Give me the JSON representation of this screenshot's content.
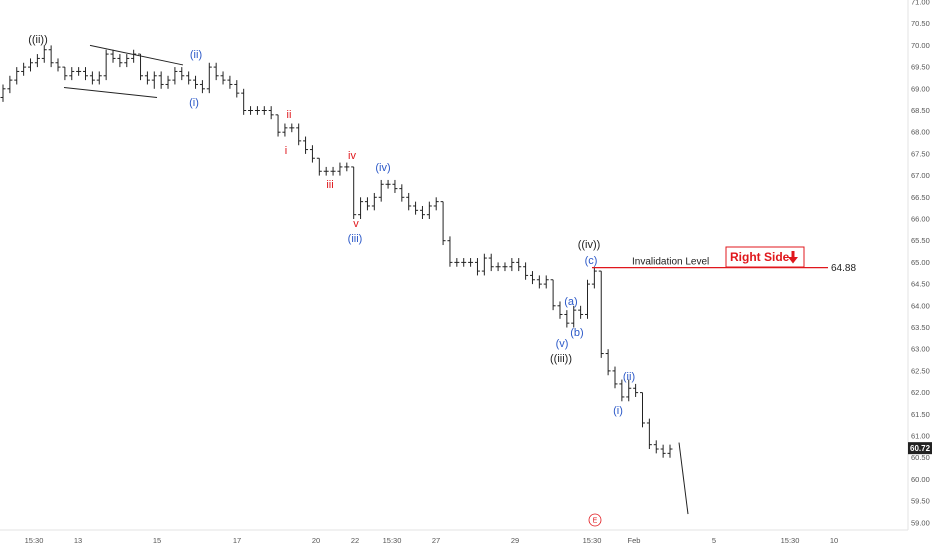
{
  "chart_data": {
    "type": "ohlc",
    "y_axis": {
      "range": [
        58.8,
        71.1
      ],
      "ticks": [
        59.0,
        59.5,
        60.0,
        60.5,
        61.0,
        61.5,
        62.0,
        62.5,
        63.0,
        63.5,
        64.0,
        64.5,
        65.0,
        65.5,
        66.0,
        66.5,
        67.0,
        67.5,
        68.0,
        68.5,
        69.0,
        69.5,
        70.0,
        70.5,
        71.0
      ],
      "tick_labels": [
        "59.00",
        "59.50",
        "60.00",
        "60.50",
        "61.00",
        "61.50",
        "62.00",
        "62.50",
        "63.00",
        "63.50",
        "64.00",
        "64.50",
        "65.00",
        "65.50",
        "66.00",
        "66.50",
        "67.00",
        "67.50",
        "68.00",
        "68.50",
        "69.00",
        "69.50",
        "70.00",
        "70.50",
        "71.00"
      ]
    },
    "x_axis": {
      "tick_labels": [
        "15:30",
        "13",
        "15",
        "17",
        "20",
        "22",
        "15:30",
        "27",
        "29",
        "15:30",
        "Feb",
        "5",
        "15:30",
        "10"
      ]
    },
    "last_price": "60.72",
    "bars": [
      [
        68.8,
        69.1,
        68.7,
        69.0
      ],
      [
        69.0,
        69.3,
        68.9,
        69.2
      ],
      [
        69.2,
        69.5,
        69.1,
        69.4
      ],
      [
        69.4,
        69.6,
        69.3,
        69.5
      ],
      [
        69.5,
        69.7,
        69.4,
        69.6
      ],
      [
        69.6,
        69.8,
        69.5,
        69.7
      ],
      [
        69.7,
        70.0,
        69.6,
        69.9
      ],
      [
        69.9,
        70.0,
        69.5,
        69.6
      ],
      [
        69.6,
        69.7,
        69.4,
        69.5
      ],
      [
        69.5,
        69.5,
        69.2,
        69.3
      ],
      [
        69.3,
        69.5,
        69.2,
        69.4
      ],
      [
        69.4,
        69.5,
        69.3,
        69.4
      ],
      [
        69.4,
        69.5,
        69.2,
        69.3
      ],
      [
        69.3,
        69.4,
        69.1,
        69.2
      ],
      [
        69.2,
        69.4,
        69.1,
        69.3
      ],
      [
        69.3,
        69.9,
        69.2,
        69.8
      ],
      [
        69.8,
        69.9,
        69.6,
        69.7
      ],
      [
        69.7,
        69.8,
        69.5,
        69.6
      ],
      [
        69.6,
        69.8,
        69.5,
        69.7
      ],
      [
        69.7,
        69.9,
        69.6,
        69.8
      ],
      [
        69.8,
        69.8,
        69.2,
        69.3
      ],
      [
        69.3,
        69.4,
        69.1,
        69.2
      ],
      [
        69.2,
        69.4,
        69.0,
        69.3
      ],
      [
        69.3,
        69.4,
        69.0,
        69.1
      ],
      [
        69.1,
        69.3,
        69.0,
        69.2
      ],
      [
        69.2,
        69.5,
        69.1,
        69.4
      ],
      [
        69.4,
        69.5,
        69.2,
        69.3
      ],
      [
        69.3,
        69.4,
        69.1,
        69.2
      ],
      [
        69.2,
        69.3,
        69.0,
        69.1
      ],
      [
        69.1,
        69.2,
        68.9,
        69.0
      ],
      [
        69.0,
        69.6,
        68.9,
        69.5
      ],
      [
        69.5,
        69.6,
        69.2,
        69.3
      ],
      [
        69.3,
        69.4,
        69.1,
        69.2
      ],
      [
        69.2,
        69.3,
        69.0,
        69.1
      ],
      [
        69.1,
        69.2,
        68.8,
        68.9
      ],
      [
        68.9,
        69.0,
        68.4,
        68.5
      ],
      [
        68.5,
        68.6,
        68.4,
        68.5
      ],
      [
        68.5,
        68.6,
        68.4,
        68.5
      ],
      [
        68.5,
        68.6,
        68.4,
        68.5
      ],
      [
        68.5,
        68.6,
        68.3,
        68.4
      ],
      [
        68.4,
        68.4,
        67.9,
        68.0
      ],
      [
        68.0,
        68.2,
        67.9,
        68.1
      ],
      [
        68.1,
        68.2,
        68.0,
        68.1
      ],
      [
        68.1,
        68.2,
        67.7,
        67.8
      ],
      [
        67.8,
        67.9,
        67.5,
        67.6
      ],
      [
        67.6,
        67.7,
        67.3,
        67.4
      ],
      [
        67.4,
        67.4,
        67.0,
        67.1
      ],
      [
        67.1,
        67.2,
        67.0,
        67.1
      ],
      [
        67.1,
        67.2,
        67.0,
        67.1
      ],
      [
        67.1,
        67.3,
        67.0,
        67.2
      ],
      [
        67.2,
        67.3,
        67.1,
        67.2
      ],
      [
        67.2,
        67.2,
        66.0,
        66.1
      ],
      [
        66.1,
        66.5,
        66.0,
        66.4
      ],
      [
        66.4,
        66.5,
        66.2,
        66.3
      ],
      [
        66.3,
        66.6,
        66.2,
        66.5
      ],
      [
        66.5,
        66.9,
        66.4,
        66.8
      ],
      [
        66.8,
        66.9,
        66.7,
        66.8
      ],
      [
        66.8,
        66.9,
        66.6,
        66.7
      ],
      [
        66.7,
        66.8,
        66.4,
        66.5
      ],
      [
        66.5,
        66.6,
        66.2,
        66.3
      ],
      [
        66.3,
        66.4,
        66.1,
        66.2
      ],
      [
        66.2,
        66.3,
        66.0,
        66.1
      ],
      [
        66.1,
        66.4,
        66.0,
        66.3
      ],
      [
        66.3,
        66.5,
        66.2,
        66.4
      ],
      [
        66.4,
        66.4,
        65.4,
        65.5
      ],
      [
        65.5,
        65.6,
        64.9,
        65.0
      ],
      [
        65.0,
        65.1,
        64.9,
        65.0
      ],
      [
        65.0,
        65.1,
        64.9,
        65.0
      ],
      [
        65.0,
        65.1,
        64.9,
        65.0
      ],
      [
        65.0,
        65.1,
        64.7,
        64.8
      ],
      [
        64.8,
        65.2,
        64.7,
        65.1
      ],
      [
        65.1,
        65.2,
        64.8,
        64.9
      ],
      [
        64.9,
        65.0,
        64.8,
        64.9
      ],
      [
        64.9,
        65.0,
        64.8,
        64.9
      ],
      [
        64.9,
        65.1,
        64.8,
        65.0
      ],
      [
        65.0,
        65.1,
        64.8,
        64.9
      ],
      [
        64.9,
        65.0,
        64.6,
        64.7
      ],
      [
        64.7,
        64.8,
        64.5,
        64.6
      ],
      [
        64.6,
        64.7,
        64.4,
        64.5
      ],
      [
        64.5,
        64.7,
        64.4,
        64.6
      ],
      [
        64.6,
        64.6,
        63.9,
        64.0
      ],
      [
        64.0,
        64.1,
        63.7,
        63.8
      ],
      [
        63.8,
        63.9,
        63.5,
        63.6
      ],
      [
        63.6,
        64.0,
        63.5,
        63.9
      ],
      [
        63.9,
        64.0,
        63.7,
        63.8
      ],
      [
        63.8,
        64.6,
        63.7,
        64.5
      ],
      [
        64.5,
        64.9,
        64.4,
        64.8
      ],
      [
        64.8,
        64.8,
        62.8,
        62.9
      ],
      [
        62.9,
        63.0,
        62.4,
        62.5
      ],
      [
        62.5,
        62.6,
        62.1,
        62.2
      ],
      [
        62.2,
        62.3,
        61.8,
        61.9
      ],
      [
        61.9,
        62.3,
        61.8,
        62.1
      ],
      [
        62.1,
        62.2,
        61.9,
        62.0
      ],
      [
        62.0,
        62.0,
        61.2,
        61.3
      ],
      [
        61.3,
        61.4,
        60.7,
        60.8
      ],
      [
        60.8,
        60.9,
        60.6,
        60.7
      ],
      [
        60.7,
        60.8,
        60.5,
        60.6
      ],
      [
        60.6,
        60.8,
        60.5,
        60.7
      ]
    ],
    "projection": [
      [
        60.85,
        59.2
      ]
    ],
    "wave_labels": [
      {
        "text": "((ii))",
        "color": "#222222"
      },
      {
        "text": "(ii)",
        "color": "#2c59c8"
      },
      {
        "text": "(i)",
        "color": "#2c59c8"
      },
      {
        "text": "ii",
        "color": "#e0171c"
      },
      {
        "text": "i",
        "color": "#e0171c"
      },
      {
        "text": "iii",
        "color": "#e0171c"
      },
      {
        "text": "iv",
        "color": "#e0171c"
      },
      {
        "text": "v",
        "color": "#e0171c"
      },
      {
        "text": "(iii)",
        "color": "#2c59c8"
      },
      {
        "text": "(iv)",
        "color": "#2c59c8"
      },
      {
        "text": "((iv))",
        "color": "#222222"
      },
      {
        "text": "(c)",
        "color": "#2c59c8"
      },
      {
        "text": "(a)",
        "color": "#2c59c8"
      },
      {
        "text": "(b)",
        "color": "#2c59c8"
      },
      {
        "text": "(v)",
        "color": "#2c59c8"
      },
      {
        "text": "((iii))",
        "color": "#222222"
      },
      {
        "text": "(ii)",
        "color": "#2c59c8"
      },
      {
        "text": "(i)",
        "color": "#2c59c8"
      }
    ],
    "invalidation": {
      "label": "Invalidation Level",
      "value": "64.88",
      "price": 64.88,
      "color": "#e0171c"
    },
    "badge": {
      "text": "Right Side",
      "color": "#e0171c"
    },
    "event_marker": "E",
    "colors": {
      "bars": "#222222",
      "axis_text": "#555555",
      "price_tag_bg": "#222222"
    }
  }
}
